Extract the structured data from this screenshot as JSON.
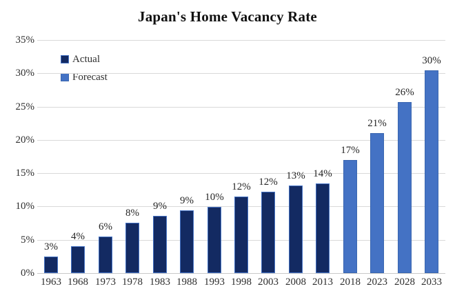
{
  "chart_data": {
    "type": "bar",
    "title": "Japan's Home Vacancy Rate",
    "categories": [
      "1963",
      "1968",
      "1973",
      "1978",
      "1983",
      "1988",
      "1993",
      "1998",
      "2003",
      "2008",
      "2013",
      "2018",
      "2023",
      "2028",
      "2033"
    ],
    "series": [
      {
        "name": "Actual",
        "color": "#132a62",
        "border_color": "#4472c4",
        "values": [
          2.5,
          4.0,
          5.5,
          7.6,
          8.6,
          9.4,
          9.9,
          11.5,
          12.2,
          13.1,
          13.5,
          null,
          null,
          null,
          null
        ]
      },
      {
        "name": "Forecast",
        "color": "#4472c4",
        "border_color": "#3a66b0",
        "values": [
          null,
          null,
          null,
          null,
          null,
          null,
          null,
          null,
          null,
          null,
          null,
          17.0,
          21.0,
          25.7,
          30.4
        ]
      }
    ],
    "bar_labels": [
      "3%",
      "4%",
      "6%",
      "8%",
      "9%",
      "9%",
      "10%",
      "12%",
      "12%",
      "13%",
      "14%",
      "17%",
      "21%",
      "26%",
      "30%"
    ],
    "ylim": [
      0,
      35
    ],
    "yticks": [
      0,
      5,
      10,
      15,
      20,
      25,
      30,
      35
    ],
    "ytick_labels": [
      "0%",
      "5%",
      "10%",
      "15%",
      "20%",
      "25%",
      "30%",
      "35%"
    ],
    "grid": "horizontal",
    "legend_position": "top-left",
    "colors": {
      "gridline": "#d9d9d9",
      "axis": "#c9c9c9",
      "tick_text": "#2e2e2e",
      "title_text": "#111111"
    }
  }
}
